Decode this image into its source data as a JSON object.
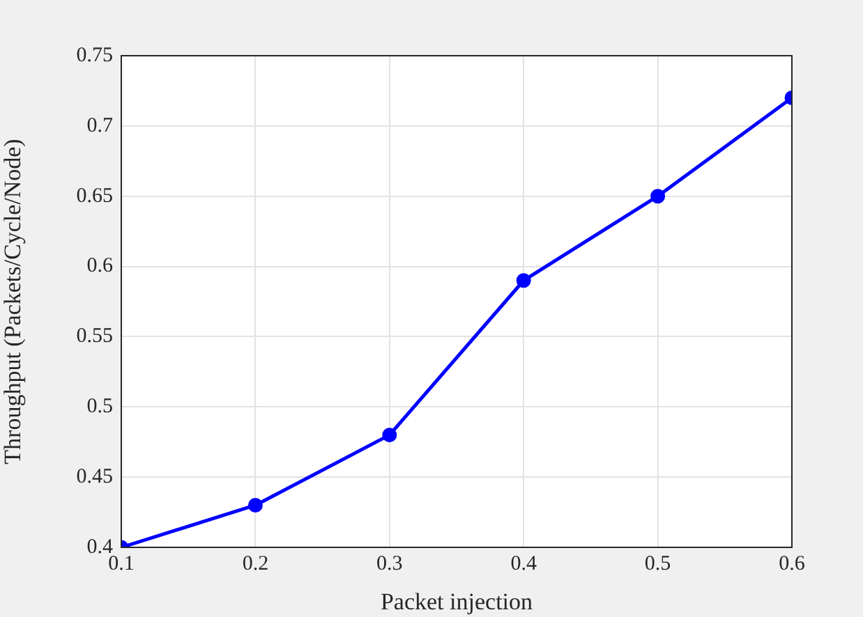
{
  "chart_data": {
    "type": "line",
    "xlabel": "Packet injection",
    "ylabel": "Throughput (Packets/Cycle/Node)",
    "x": [
      0.1,
      0.2,
      0.3,
      0.4,
      0.5,
      0.6
    ],
    "series": [
      {
        "color": "#0000ff",
        "values": [
          0.4,
          0.43,
          0.48,
          0.59,
          0.65,
          0.72
        ]
      }
    ],
    "xlim": [
      0.1,
      0.6
    ],
    "xticks": [
      0.1,
      0.2,
      0.3,
      0.4,
      0.5,
      0.6
    ],
    "ylim": [
      0.4,
      0.75
    ],
    "yticks": [
      0.4,
      0.45,
      0.5,
      0.55,
      0.6,
      0.65,
      0.7,
      0.75
    ],
    "grid": true,
    "legend": false,
    "marker": "circle",
    "line_style": "solid"
  }
}
